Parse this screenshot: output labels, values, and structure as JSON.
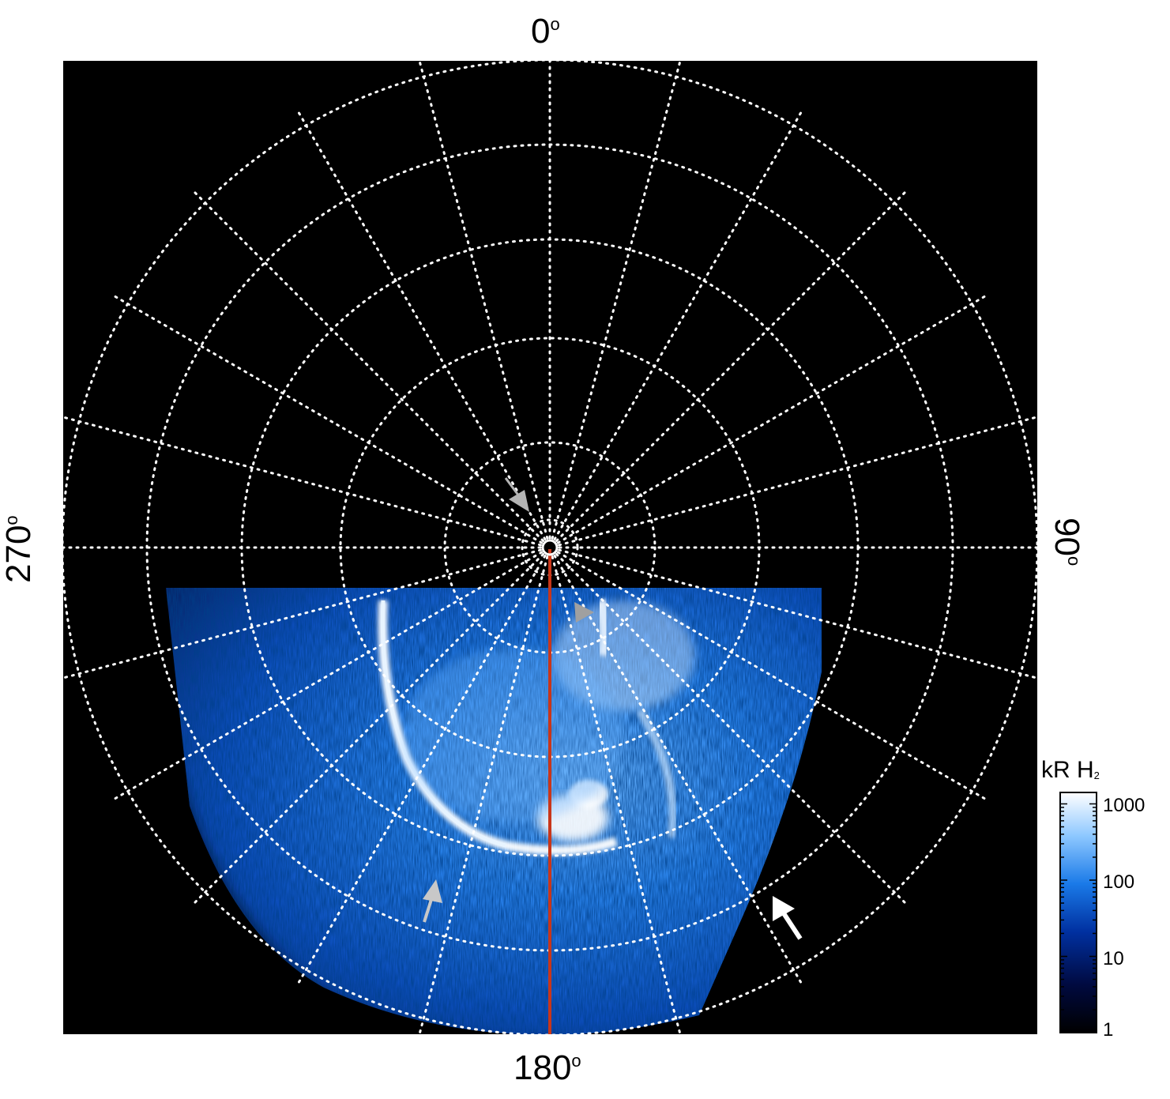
{
  "figure": {
    "labels": {
      "top": "0",
      "right": "90",
      "bottom": "180",
      "left": "270",
      "degree_symbol": "o"
    },
    "colorbar": {
      "title_main": "kR H",
      "title_sub": "2",
      "ticks": [
        "1000",
        "100",
        "10",
        "1"
      ],
      "colors": [
        "#000000",
        "#000a40",
        "#0030a0",
        "#1a7ae8",
        "#8ec8ff",
        "#ffffff"
      ]
    },
    "colors": {
      "background": "#000000",
      "grid": "#ffffff",
      "meridian_line": "#c8361a",
      "arrow_gray": "#b4b4b4",
      "arrow_white": "#ffffff"
    }
  }
}
